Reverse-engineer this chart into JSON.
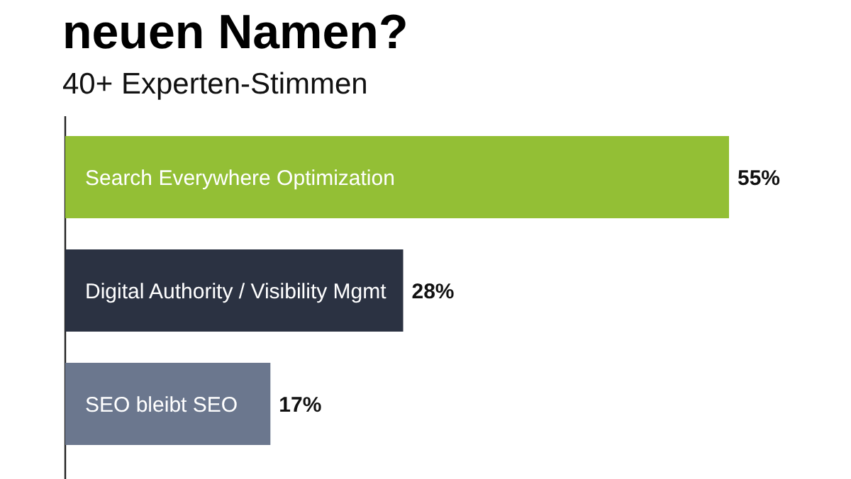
{
  "chart_data": {
    "type": "bar",
    "orientation": "horizontal",
    "title": "neuen Namen?",
    "subtitle": "40+ Experten-Stimmen",
    "categories": [
      "Search Everywhere Optimization",
      "Digital Authority / Visibility Mgmt",
      "SEO bleibt SEO"
    ],
    "values": [
      55,
      28,
      17
    ],
    "colors": [
      "#93bf35",
      "#2b3242",
      "#6b778e"
    ],
    "value_labels": [
      "55%",
      "28%",
      "17%"
    ]
  }
}
